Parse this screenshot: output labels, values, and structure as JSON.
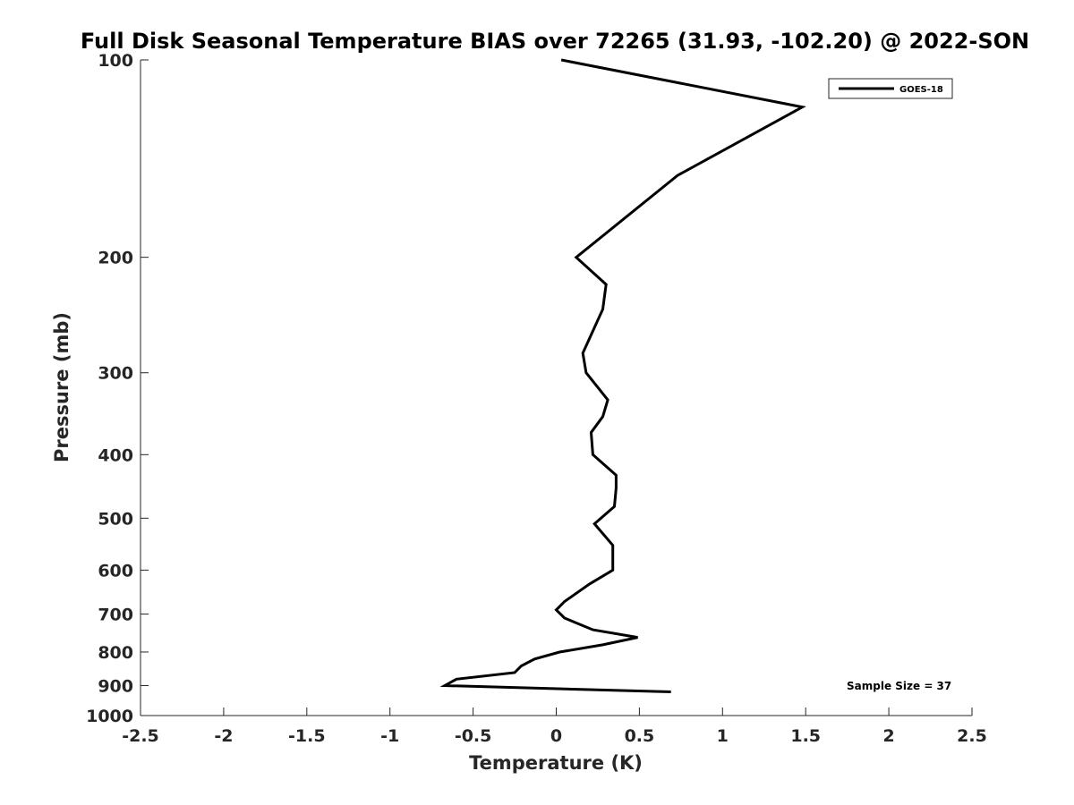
{
  "chart_data": {
    "type": "line",
    "title": "Full Disk Seasonal Temperature BIAS over 72265 (31.93, -102.20) @ 2022-SON",
    "xlabel": "Temperature (K)",
    "ylabel": "Pressure (mb)",
    "xlim": [
      -2.5,
      2.5
    ],
    "ylim": [
      1000,
      100
    ],
    "yscale": "log",
    "y_reversed": true,
    "grid": false,
    "legend_position": "top-right",
    "xticks": [
      -2.5,
      -2,
      -1.5,
      -1,
      -0.5,
      0,
      0.5,
      1,
      1.5,
      2,
      2.5
    ],
    "xtick_labels": [
      "-2.5",
      "-2",
      "-1.5",
      "-1",
      "-0.5",
      "0",
      "0.5",
      "1",
      "1.5",
      "2",
      "2.5"
    ],
    "yticks": [
      100,
      200,
      300,
      400,
      500,
      600,
      700,
      800,
      900,
      1000
    ],
    "ytick_labels": [
      "100",
      "200",
      "300",
      "400",
      "500",
      "600",
      "700",
      "800",
      "900",
      "1000"
    ],
    "series": [
      {
        "name": "GOES-18",
        "color": "#000000",
        "temperature": [
          0.03,
          1.48,
          0.73,
          0.12,
          0.3,
          0.28,
          0.16,
          0.18,
          0.31,
          0.28,
          0.21,
          0.22,
          0.36,
          0.36,
          0.35,
          0.23,
          0.34,
          0.34,
          0.2,
          0.05,
          0.0,
          0.05,
          0.22,
          0.49,
          0.28,
          0.02,
          -0.13,
          -0.21,
          -0.25,
          -0.6,
          -0.67,
          0.69
        ],
        "pressure": [
          100,
          118,
          150,
          200,
          220,
          240,
          280,
          300,
          330,
          350,
          370,
          400,
          430,
          450,
          480,
          510,
          550,
          600,
          630,
          670,
          690,
          710,
          740,
          760,
          780,
          800,
          820,
          840,
          860,
          880,
          900,
          920
        ]
      }
    ],
    "annotation": "Sample Size = 37"
  }
}
